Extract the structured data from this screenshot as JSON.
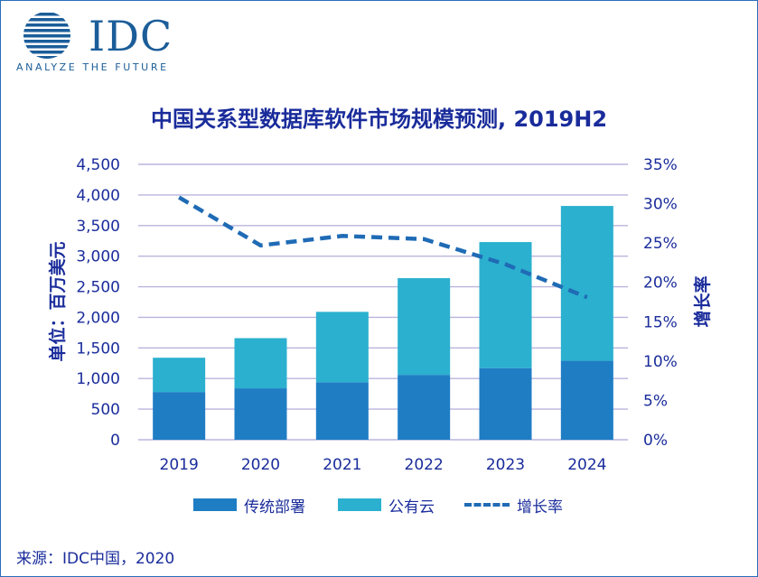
{
  "logo": {
    "name": "IDC",
    "tagline": "ANALYZE THE FUTURE"
  },
  "source": "来源：IDC中国，2020",
  "chart_data": {
    "type": "bar",
    "stacked": true,
    "title": "中国关系型数据库软件市场规模预测, 2019H2",
    "categories": [
      "2019",
      "2020",
      "2021",
      "2022",
      "2023",
      "2024"
    ],
    "ylabel": "单位：百万美元",
    "y2label": "增长率",
    "ylim": [
      0,
      4500
    ],
    "y2lim": [
      0,
      35
    ],
    "yticks": [
      "0",
      "500",
      "1,000",
      "1,500",
      "2,000",
      "2,500",
      "3,000",
      "3,500",
      "4,000",
      "4,500"
    ],
    "y2ticks": [
      "0%",
      "5%",
      "10%",
      "15%",
      "20%",
      "25%",
      "30%",
      "35%"
    ],
    "series": [
      {
        "name": "传统部署",
        "type": "bar",
        "color": "#1f7dc4",
        "values": [
          780,
          840,
          940,
          1060,
          1170,
          1290
        ]
      },
      {
        "name": "公有云",
        "type": "bar",
        "color": "#2bb0cf",
        "values": [
          560,
          820,
          1150,
          1580,
          2060,
          2530
        ]
      },
      {
        "name": "增长率",
        "type": "line",
        "dashed": true,
        "axis": "y2",
        "color": "#1f6bb5",
        "values": [
          30.8,
          24.7,
          25.9,
          25.5,
          22.3,
          18.1
        ]
      }
    ],
    "grid": true,
    "legend": "bottom"
  }
}
